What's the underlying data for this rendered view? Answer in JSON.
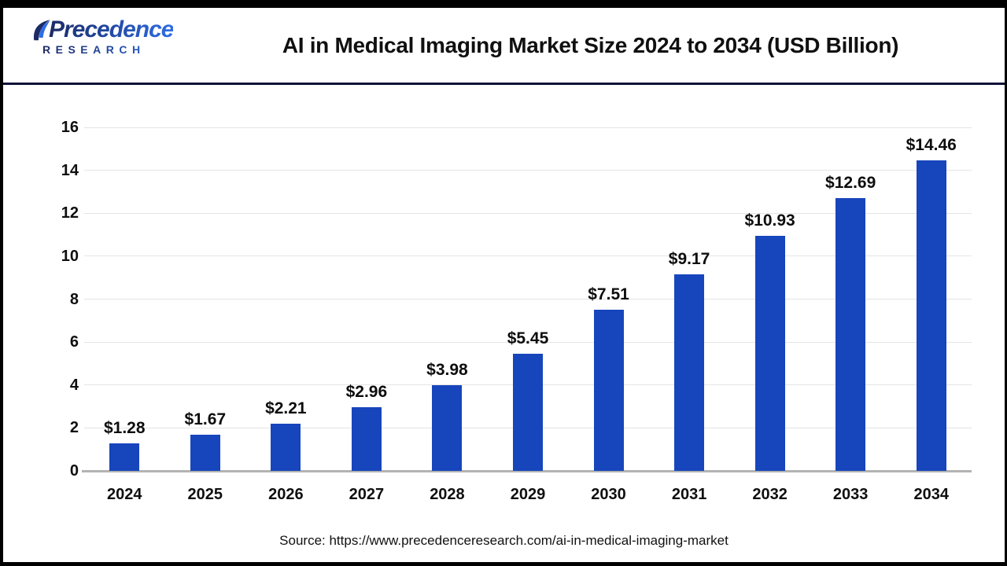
{
  "header": {
    "logo": {
      "brand_line1": "Precedence",
      "brand_line2": "RESEARCH"
    },
    "title": "AI in Medical Imaging Market Size 2024 to 2034 (USD Billion)"
  },
  "chart_data": {
    "type": "bar",
    "title": "AI in Medical Imaging Market Size 2024 to 2034 (USD Billion)",
    "categories": [
      "2024",
      "2025",
      "2026",
      "2027",
      "2028",
      "2029",
      "2030",
      "2031",
      "2032",
      "2033",
      "2034"
    ],
    "values": [
      1.28,
      1.67,
      2.21,
      2.96,
      3.98,
      5.45,
      7.51,
      9.17,
      10.93,
      12.69,
      14.46
    ],
    "value_labels": [
      "$1.28",
      "$1.67",
      "$2.21",
      "$2.96",
      "$3.98",
      "$5.45",
      "$7.51",
      "$9.17",
      "$10.93",
      "$12.69",
      "$14.46"
    ],
    "xlabel": "",
    "ylabel": "",
    "ylim": [
      0,
      16
    ],
    "yticks": [
      0,
      2,
      4,
      6,
      8,
      10,
      12,
      14,
      16
    ],
    "grid": true,
    "legend": "none",
    "bar_color": "#1745BC"
  },
  "footer": {
    "source_text": "Source: https://www.precedenceresearch.com/ai-in-medical-imaging-market"
  }
}
